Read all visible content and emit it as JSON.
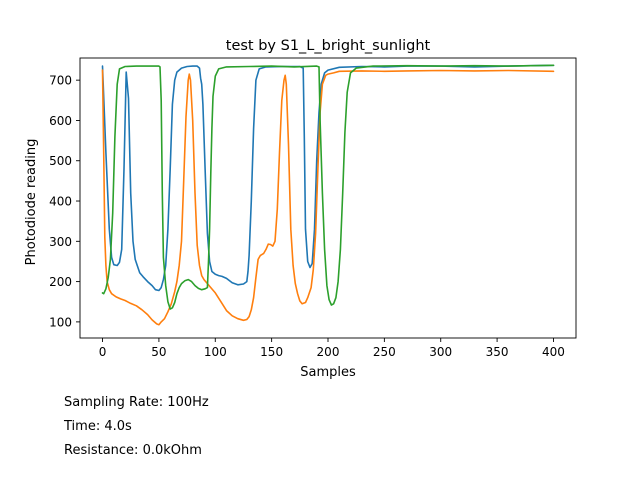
{
  "chart_data": {
    "type": "line",
    "title": "test by S1_L_bright_sunlight",
    "xlabel": "Samples",
    "ylabel": "Photodiode reading",
    "xlim": [
      -20,
      420
    ],
    "ylim": [
      60,
      755
    ],
    "xticks": [
      0,
      50,
      100,
      150,
      200,
      250,
      300,
      350,
      400
    ],
    "yticks": [
      100,
      200,
      300,
      400,
      500,
      600,
      700
    ],
    "grid": false,
    "legend": "none",
    "series": [
      {
        "color": "#1f77b4",
        "points": [
          [
            0,
            735
          ],
          [
            3,
            520
          ],
          [
            6,
            330
          ],
          [
            8,
            260
          ],
          [
            10,
            242
          ],
          [
            13,
            240
          ],
          [
            15,
            248
          ],
          [
            17,
            280
          ],
          [
            19,
            480
          ],
          [
            21,
            720
          ],
          [
            23,
            655
          ],
          [
            25,
            420
          ],
          [
            27,
            300
          ],
          [
            29,
            255
          ],
          [
            31,
            238
          ],
          [
            33,
            222
          ],
          [
            36,
            212
          ],
          [
            40,
            200
          ],
          [
            44,
            190
          ],
          [
            47,
            180
          ],
          [
            50,
            178
          ],
          [
            52,
            185
          ],
          [
            54,
            205
          ],
          [
            56,
            240
          ],
          [
            58,
            330
          ],
          [
            60,
            480
          ],
          [
            62,
            640
          ],
          [
            64,
            700
          ],
          [
            66,
            720
          ],
          [
            70,
            730
          ],
          [
            75,
            734
          ],
          [
            80,
            735
          ],
          [
            84,
            735
          ],
          [
            86,
            730
          ],
          [
            87,
            705
          ],
          [
            88,
            690
          ],
          [
            89,
            640
          ],
          [
            91,
            480
          ],
          [
            93,
            320
          ],
          [
            95,
            250
          ],
          [
            97,
            225
          ],
          [
            100,
            218
          ],
          [
            103,
            215
          ],
          [
            106,
            213
          ],
          [
            110,
            208
          ],
          [
            115,
            197
          ],
          [
            120,
            192
          ],
          [
            125,
            194
          ],
          [
            128,
            200
          ],
          [
            129,
            225
          ],
          [
            130,
            265
          ],
          [
            132,
            400
          ],
          [
            134,
            580
          ],
          [
            136,
            700
          ],
          [
            139,
            728
          ],
          [
            145,
            733
          ],
          [
            160,
            734
          ],
          [
            175,
            734
          ],
          [
            178,
            730
          ],
          [
            179,
            560
          ],
          [
            180,
            330
          ],
          [
            182,
            250
          ],
          [
            184,
            235
          ],
          [
            186,
            245
          ],
          [
            188,
            330
          ],
          [
            190,
            500
          ],
          [
            192,
            620
          ],
          [
            194,
            690
          ],
          [
            197,
            718
          ],
          [
            200,
            725
          ],
          [
            210,
            732
          ],
          [
            230,
            734
          ],
          [
            250,
            733
          ],
          [
            270,
            735
          ],
          [
            300,
            735
          ],
          [
            330,
            733
          ],
          [
            360,
            735
          ],
          [
            400,
            737
          ]
        ]
      },
      {
        "color": "#ff7f0e",
        "points": [
          [
            0,
            725
          ],
          [
            1,
            520
          ],
          [
            2,
            310
          ],
          [
            3,
            240
          ],
          [
            4,
            200
          ],
          [
            6,
            180
          ],
          [
            8,
            170
          ],
          [
            12,
            162
          ],
          [
            16,
            157
          ],
          [
            20,
            153
          ],
          [
            25,
            146
          ],
          [
            30,
            140
          ],
          [
            35,
            130
          ],
          [
            40,
            118
          ],
          [
            44,
            105
          ],
          [
            48,
            95
          ],
          [
            50,
            93
          ],
          [
            52,
            100
          ],
          [
            55,
            108
          ],
          [
            58,
            125
          ],
          [
            61,
            145
          ],
          [
            64,
            175
          ],
          [
            66,
            200
          ],
          [
            68,
            240
          ],
          [
            70,
            300
          ],
          [
            72,
            450
          ],
          [
            74,
            610
          ],
          [
            76,
            700
          ],
          [
            77,
            715
          ],
          [
            78,
            700
          ],
          [
            80,
            600
          ],
          [
            82,
            420
          ],
          [
            84,
            290
          ],
          [
            86,
            240
          ],
          [
            88,
            215
          ],
          [
            90,
            205
          ],
          [
            93,
            195
          ],
          [
            96,
            185
          ],
          [
            100,
            172
          ],
          [
            105,
            150
          ],
          [
            110,
            128
          ],
          [
            115,
            115
          ],
          [
            120,
            108
          ],
          [
            125,
            104
          ],
          [
            128,
            106
          ],
          [
            130,
            113
          ],
          [
            132,
            130
          ],
          [
            134,
            160
          ],
          [
            136,
            210
          ],
          [
            138,
            255
          ],
          [
            140,
            265
          ],
          [
            143,
            270
          ],
          [
            145,
            280
          ],
          [
            147,
            293
          ],
          [
            149,
            292
          ],
          [
            151,
            288
          ],
          [
            153,
            300
          ],
          [
            155,
            380
          ],
          [
            157,
            520
          ],
          [
            159,
            650
          ],
          [
            161,
            700
          ],
          [
            162,
            712
          ],
          [
            163,
            690
          ],
          [
            165,
            540
          ],
          [
            167,
            330
          ],
          [
            169,
            240
          ],
          [
            171,
            195
          ],
          [
            173,
            170
          ],
          [
            175,
            152
          ],
          [
            177,
            145
          ],
          [
            180,
            148
          ],
          [
            182,
            160
          ],
          [
            185,
            185
          ],
          [
            187,
            230
          ],
          [
            189,
            320
          ],
          [
            191,
            480
          ],
          [
            193,
            620
          ],
          [
            195,
            690
          ],
          [
            198,
            712
          ],
          [
            200,
            715
          ],
          [
            205,
            718
          ],
          [
            210,
            722
          ],
          [
            230,
            723
          ],
          [
            250,
            722
          ],
          [
            270,
            723
          ],
          [
            300,
            724
          ],
          [
            330,
            723
          ],
          [
            360,
            724
          ],
          [
            400,
            722
          ]
        ]
      },
      {
        "color": "#2ca02c",
        "points": [
          [
            0,
            172
          ],
          [
            1,
            170
          ],
          [
            3,
            182
          ],
          [
            5,
            210
          ],
          [
            7,
            255
          ],
          [
            9,
            370
          ],
          [
            11,
            560
          ],
          [
            13,
            690
          ],
          [
            15,
            728
          ],
          [
            20,
            734
          ],
          [
            30,
            735
          ],
          [
            40,
            735
          ],
          [
            50,
            735
          ],
          [
            51,
            733
          ],
          [
            52,
            650
          ],
          [
            53,
            420
          ],
          [
            54,
            260
          ],
          [
            56,
            190
          ],
          [
            58,
            150
          ],
          [
            60,
            132
          ],
          [
            62,
            135
          ],
          [
            64,
            148
          ],
          [
            66,
            170
          ],
          [
            68,
            185
          ],
          [
            70,
            195
          ],
          [
            73,
            202
          ],
          [
            76,
            205
          ],
          [
            79,
            200
          ],
          [
            82,
            190
          ],
          [
            85,
            183
          ],
          [
            88,
            180
          ],
          [
            91,
            182
          ],
          [
            93,
            185
          ],
          [
            94,
            250
          ],
          [
            95,
            330
          ],
          [
            96,
            470
          ],
          [
            97,
            580
          ],
          [
            98,
            660
          ],
          [
            100,
            710
          ],
          [
            103,
            728
          ],
          [
            110,
            733
          ],
          [
            130,
            734
          ],
          [
            150,
            735
          ],
          [
            170,
            733
          ],
          [
            190,
            735
          ],
          [
            192,
            733
          ],
          [
            193,
            600
          ],
          [
            195,
            420
          ],
          [
            197,
            280
          ],
          [
            199,
            190
          ],
          [
            201,
            155
          ],
          [
            203,
            142
          ],
          [
            205,
            145
          ],
          [
            207,
            160
          ],
          [
            209,
            200
          ],
          [
            211,
            280
          ],
          [
            213,
            420
          ],
          [
            215,
            570
          ],
          [
            217,
            670
          ],
          [
            220,
            718
          ],
          [
            225,
            730
          ],
          [
            240,
            735
          ],
          [
            270,
            736
          ],
          [
            300,
            735
          ],
          [
            330,
            736
          ],
          [
            360,
            735
          ],
          [
            400,
            737
          ]
        ]
      }
    ]
  },
  "info": [
    "Sampling Rate: 100Hz",
    "Time: 4.0s",
    "Resistance: 0.0kOhm"
  ]
}
